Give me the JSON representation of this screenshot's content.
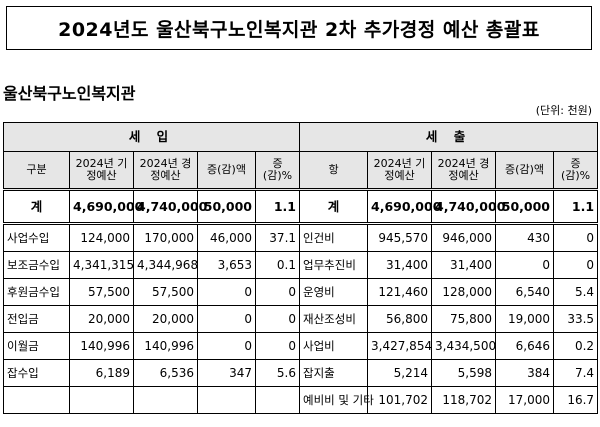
{
  "title": "2024년도 울산북구노인복지관 2차 추가경정 예산 총괄표",
  "org_name": "울산북구노인복지관",
  "unit": "(단위: 천원)",
  "income": {
    "group_label": "세 입",
    "headers": [
      "구분",
      "2024년 기정예산",
      "2024년 경정예산",
      "증(감)액",
      "증(감)%"
    ]
  },
  "expense": {
    "group_label": "세 출",
    "headers": [
      "항",
      "2024년 기정예산",
      "2024년 경정예산",
      "증(감)액",
      "증(감)%"
    ]
  },
  "total": {
    "income": [
      "계",
      "4,690,000",
      "4,740,000",
      "50,000",
      "1.1"
    ],
    "expense": [
      "계",
      "4,690,000",
      "4,740,000",
      "50,000",
      "1.1"
    ]
  },
  "rows": [
    {
      "income": [
        "사업수입",
        "124,000",
        "170,000",
        "46,000",
        "37.1"
      ],
      "expense": [
        "인건비",
        "945,570",
        "946,000",
        "430",
        "0"
      ]
    },
    {
      "income": [
        "보조금수입",
        "4,341,315",
        "4,344,968",
        "3,653",
        "0.1"
      ],
      "expense": [
        "업무추진비",
        "31,400",
        "31,400",
        "0",
        "0"
      ]
    },
    {
      "income": [
        "후원금수입",
        "57,500",
        "57,500",
        "0",
        "0"
      ],
      "expense": [
        "운영비",
        "121,460",
        "128,000",
        "6,540",
        "5.4"
      ]
    },
    {
      "income": [
        "전입금",
        "20,000",
        "20,000",
        "0",
        "0"
      ],
      "expense": [
        "재산조성비",
        "56,800",
        "75,800",
        "19,000",
        "33.5"
      ]
    },
    {
      "income": [
        "이월금",
        "140,996",
        "140,996",
        "0",
        "0"
      ],
      "expense": [
        "사업비",
        "3,427,854",
        "3,434,500",
        "6,646",
        "0.2"
      ]
    },
    {
      "income": [
        "잡수입",
        "6,189",
        "6,536",
        "347",
        "5.6"
      ],
      "expense": [
        "잡지출",
        "5,214",
        "5,598",
        "384",
        "7.4"
      ]
    },
    {
      "income": [
        "",
        "",
        "",
        "",
        ""
      ],
      "expense": [
        "예비비 및 기타",
        "101,702",
        "118,702",
        "17,000",
        "16.7"
      ]
    }
  ]
}
